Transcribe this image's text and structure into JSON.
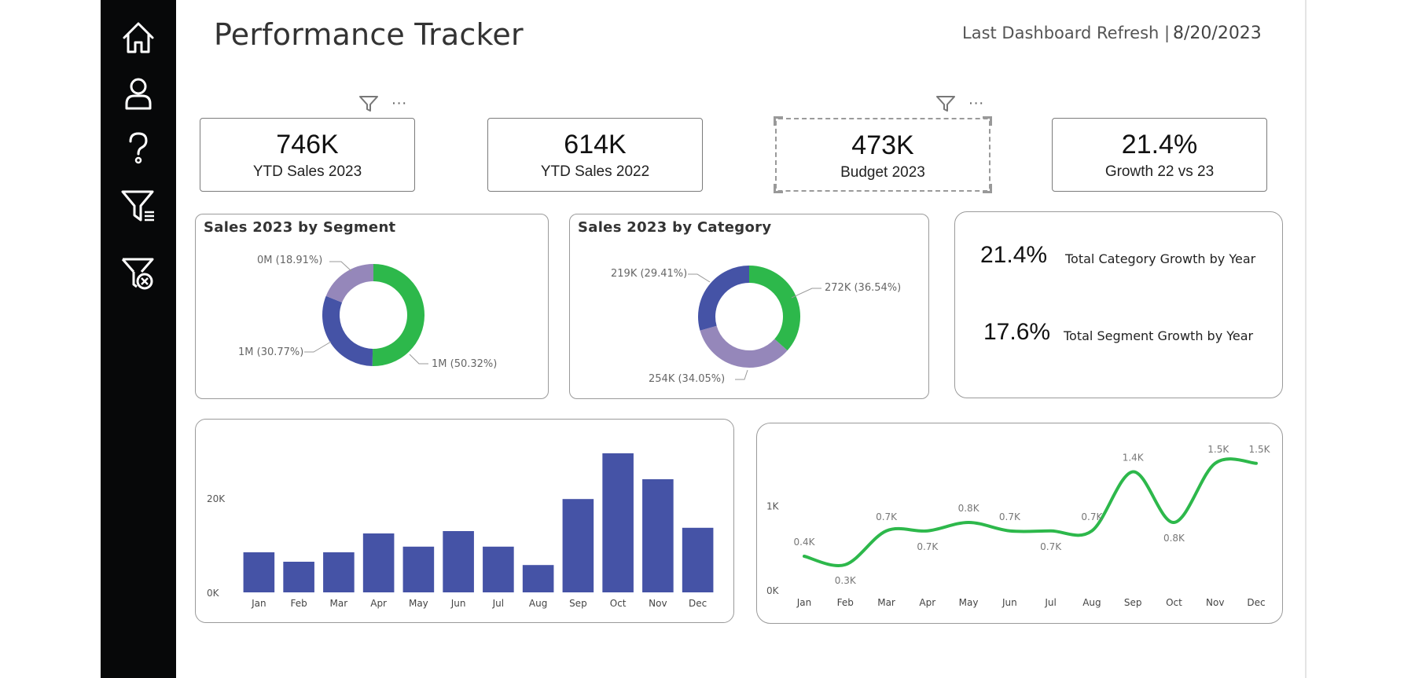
{
  "header": {
    "title": "Performance Tracker",
    "refresh_label": "Last Dashboard Refresh |",
    "refresh_date": "8/20/2023"
  },
  "sidebar": {
    "items": [
      {
        "icon": "home-icon"
      },
      {
        "icon": "user-icon"
      },
      {
        "icon": "help-icon"
      },
      {
        "icon": "filter-list-icon"
      },
      {
        "icon": "clear-filter-icon"
      }
    ]
  },
  "kpis": [
    {
      "value": "746K",
      "label": "YTD Sales 2023"
    },
    {
      "value": "614K",
      "label": "YTD Sales 2022"
    },
    {
      "value": "473K",
      "label": "Budget 2023"
    },
    {
      "value": "21.4%",
      "label": "Growth 22 vs 23"
    }
  ],
  "toolbar": {
    "more_glyph": "···"
  },
  "growth": [
    {
      "value": "21.4%",
      "label": "Total Category Growth by Year"
    },
    {
      "value": "17.6%",
      "label": "Total Segment Growth by Year"
    }
  ],
  "colors": {
    "green": "#2db84b",
    "blue": "#4553a6",
    "lavender": "#9587ba",
    "sidebar": "#070809"
  },
  "chart_data": [
    {
      "type": "pie",
      "title": "Sales 2023 by Segment",
      "slices": [
        {
          "value": 50.32,
          "label": "1M (50.32%)",
          "color": "#2db84b"
        },
        {
          "value": 30.77,
          "label": "1M (30.77%)",
          "color": "#4553a6"
        },
        {
          "value": 18.91,
          "label": "0M (18.91%)",
          "color": "#9587ba"
        }
      ]
    },
    {
      "type": "pie",
      "title": "Sales 2023 by Category",
      "slices": [
        {
          "value": 36.54,
          "label": "272K (36.54%)",
          "color": "#2db84b"
        },
        {
          "value": 34.05,
          "label": "254K (34.05%)",
          "color": "#9587ba"
        },
        {
          "value": 29.41,
          "label": "219K (29.41%)",
          "color": "#4553a6"
        }
      ]
    },
    {
      "type": "bar",
      "title": "",
      "categories": [
        "Jan",
        "Feb",
        "Mar",
        "Apr",
        "May",
        "Jun",
        "Jul",
        "Aug",
        "Sep",
        "Oct",
        "Nov",
        "Dec"
      ],
      "values": [
        8500,
        6500,
        8500,
        12500,
        9700,
        13000,
        9700,
        5800,
        19800,
        29500,
        24000,
        13700
      ],
      "ylim": [
        0,
        30000
      ],
      "yticks": [
        {
          "value": 0,
          "label": "0K"
        },
        {
          "value": 20000,
          "label": "20K"
        }
      ],
      "color": "#4553a6"
    },
    {
      "type": "line",
      "title": "",
      "categories": [
        "Jan",
        "Feb",
        "Mar",
        "Apr",
        "May",
        "Jun",
        "Jul",
        "Aug",
        "Sep",
        "Oct",
        "Nov",
        "Dec"
      ],
      "values": [
        0.4,
        0.3,
        0.7,
        0.7,
        0.8,
        0.7,
        0.7,
        0.7,
        1.4,
        0.8,
        1.5,
        1.5
      ],
      "labels": [
        "0.4K",
        "0.3K",
        "0.7K",
        "0.7K",
        "0.8K",
        "0.7K",
        "0.7K",
        "0.7K",
        "1.4K",
        "0.8K",
        "1.5K",
        "1.5K"
      ],
      "ylim": [
        0,
        1.6
      ],
      "yticks": [
        {
          "value": 0,
          "label": "0K"
        },
        {
          "value": 1,
          "label": "1K"
        }
      ],
      "color": "#2db84b"
    }
  ]
}
